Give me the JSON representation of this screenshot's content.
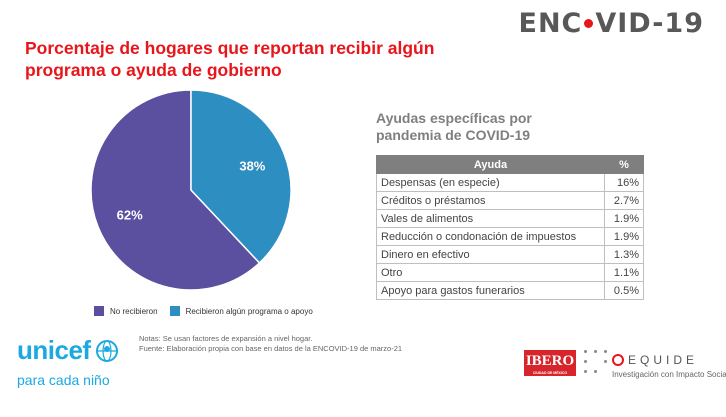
{
  "header": {
    "logo_left": "ENC",
    "logo_right": "VID-19",
    "logo_dot_color": "#e8151b"
  },
  "title": "Porcentaje de hogares que reportan recibir algún programa o ayuda de gobierno",
  "chart_data": {
    "type": "pie",
    "title": "",
    "slices": [
      {
        "name": "No recibieron",
        "value": 62,
        "label": "62%",
        "color": "#5b4fa0"
      },
      {
        "name": "Recibieron algún programa o apoyo",
        "value": 38,
        "label": "38%",
        "color": "#2d8ec2"
      }
    ],
    "legend_position": "bottom"
  },
  "aid_section": {
    "subtitle": "Ayudas específicas por pandemia de  COVID-19",
    "table": {
      "type": "table",
      "columns": [
        "Ayuda",
        "%"
      ],
      "rows": [
        [
          "Despensas (en especie)",
          "16%"
        ],
        [
          "Créditos o préstamos",
          "2.7%"
        ],
        [
          "Vales de alimentos",
          "1.9%"
        ],
        [
          "Reducción o condonación de impuestos",
          "1.9%"
        ],
        [
          "Dinero en efectivo",
          "1.3%"
        ],
        [
          "Otro",
          "1.1%"
        ],
        [
          "Apoyo para gastos funerarios",
          "0.5%"
        ]
      ]
    }
  },
  "notes": {
    "line1": "Notas: Se usan factores de expansión a nivel hogar.",
    "line2": "Fuente: Elaboración propia con base en datos de la ENCOVID-19 de marzo-21"
  },
  "footer": {
    "unicef_word": "unicef",
    "unicef_tagline": "para cada niño",
    "ibero_word": "IBERO",
    "ibero_sub": "CIUDAD DE MÉXICO",
    "equide_word": "EQUIDE",
    "equide_tagline": "Investigación con Impacto Social"
  }
}
